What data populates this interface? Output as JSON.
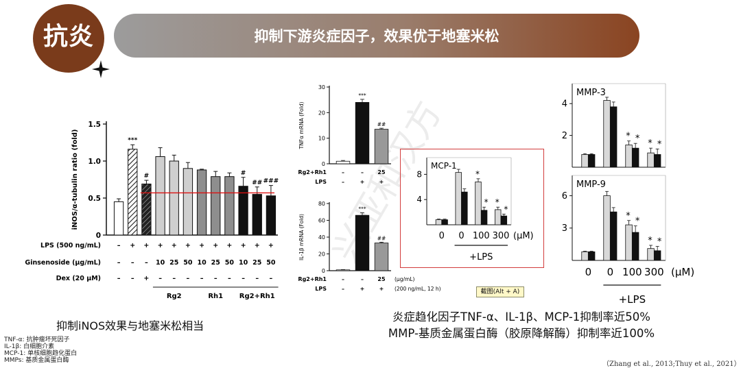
{
  "header": {
    "badge_label": "抗炎",
    "banner_title": "抑制下游炎症因子，效果优于地塞米松"
  },
  "watermark": "兴亚和汉方",
  "inos_panel": {
    "caption": "抑制iNOS效果与地塞米松相当",
    "row_labels": {
      "lps": "LPS (500 ng/mL)",
      "ginsenoside": "Ginsenoside (μg/mL)",
      "dex": "Dex (20 μM)"
    },
    "lps_row": [
      "–",
      "+",
      "+",
      "+",
      "+",
      "+",
      "+",
      "+",
      "+",
      "+",
      "+",
      "+"
    ],
    "ginsenoside_row": [
      "–",
      "–",
      "–",
      "10",
      "25",
      "50",
      "10",
      "25",
      "50",
      "10",
      "25",
      "50"
    ],
    "dex_row": [
      "–",
      "–",
      "+",
      "–",
      "–",
      "–",
      "–",
      "–",
      "–",
      "–",
      "–",
      "–"
    ],
    "groups": [
      "Rg2",
      "Rh1",
      "Rg2+Rh1"
    ]
  },
  "tnf_panel": {
    "row_labels": {
      "rg": "Rg2+Rh1",
      "lps": "LPS"
    },
    "rg_row": [
      "–",
      "–",
      "25"
    ],
    "lps_row": [
      "–",
      "+",
      "+"
    ]
  },
  "il1_panel": {
    "row_labels": {
      "rg": "Rg2+Rh1",
      "lps": "LPS"
    },
    "rg_row": [
      "–",
      "–",
      "25"
    ],
    "lps_row": [
      "–",
      "+",
      "+"
    ],
    "unit1": "(μg/mL)",
    "unit2": "(200 ng/mL, 12 h)"
  },
  "mcp_panel": {
    "x_labels": [
      "0",
      "0",
      "100",
      "300"
    ],
    "unit": "(μM)",
    "lps_label": "+LPS"
  },
  "mmp_panel": {
    "x_labels": [
      "0",
      "0",
      "100",
      "300"
    ],
    "unit": "(μM)",
    "lps_label": "+LPS"
  },
  "captions": {
    "middle_line1": "炎症趋化因子TNF-α、IL-1β、MCP-1抑制率近50%",
    "middle_line2": "MMP-基质金属蛋白酶（胶原降解酶）抑制率近100%",
    "tooltip": "截图(Alt + A)",
    "citation": "（Zhang et al., 2013;Thuy et al., 2021）"
  },
  "footnotes": [
    "TNF-α: 抗肿瘤坏死因子",
    "IL-1β: 白细胞介素",
    "MCP-1: 单核细胞趋化蛋白",
    "MMPs: 基质金属蛋白酶"
  ],
  "chart_data": [
    {
      "type": "bar",
      "id": "inos",
      "ylabel": "iNOS/α-tubulin ratio (fold)",
      "ylim": [
        0,
        1.5
      ],
      "yticks": [
        0,
        0.5,
        1.0,
        1.5
      ],
      "values": [
        0.45,
        1.16,
        0.69,
        1.06,
        1.0,
        0.9,
        0.88,
        0.79,
        0.79,
        0.66,
        0.55,
        0.53
      ],
      "errors": [
        0.04,
        0.06,
        0.05,
        0.12,
        0.08,
        0.08,
        0.01,
        0.07,
        0.05,
        0.12,
        0.1,
        0.14
      ],
      "significance": [
        "",
        "***",
        "#",
        "",
        "",
        "",
        "",
        "",
        "",
        "#",
        "##",
        "###"
      ],
      "reference_line": 0.57,
      "colors": [
        "#ffffff",
        "hatch",
        "hatch-dark",
        "#cfcfcf",
        "#cfcfcf",
        "#cfcfcf",
        "#8e8e8e",
        "#8e8e8e",
        "#8e8e8e",
        "#111111",
        "#111111",
        "#111111"
      ]
    },
    {
      "type": "bar",
      "id": "tnf",
      "ylabel": "TNFα mRNA (Fold)",
      "ylim": [
        0,
        30
      ],
      "yticks": [
        0,
        10,
        20,
        30
      ],
      "values": [
        1,
        24,
        13.5
      ],
      "errors": [
        0.3,
        1.2,
        0.4
      ],
      "significance": [
        "",
        "***",
        "##"
      ],
      "colors": [
        "#ffffff",
        "#111111",
        "#999999"
      ]
    },
    {
      "type": "bar",
      "id": "il1b",
      "ylabel": "IL-1β mRNA (Fold)",
      "ylim": [
        0,
        80
      ],
      "yticks": [
        0,
        20,
        40,
        60,
        80
      ],
      "values": [
        1,
        66,
        33
      ],
      "errors": [
        0.3,
        3,
        1
      ],
      "significance": [
        "",
        "***",
        "##"
      ],
      "colors": [
        "#ffffff",
        "#111111",
        "#999999"
      ]
    },
    {
      "type": "bar",
      "id": "mcp1",
      "title": "MCP-1",
      "ylim": [
        0,
        10
      ],
      "yticks": [
        4,
        8
      ],
      "categories": [
        "0",
        "0",
        "100",
        "300"
      ],
      "series": [
        {
          "values": [
            0.8,
            8.3,
            6.8,
            2.4
          ],
          "errors": [
            0.1,
            0.5,
            0.5,
            0.4
          ]
        },
        {
          "values": [
            0.8,
            5.2,
            2.3,
            1.4
          ],
          "errors": [
            0.1,
            0.5,
            0.5,
            0.3
          ]
        }
      ],
      "significance": [
        [
          "",
          ""
        ],
        [
          "",
          ""
        ],
        [
          "*",
          "*"
        ],
        [
          "*",
          "*"
        ]
      ],
      "colors": [
        "#d8d8d8",
        "#111111"
      ]
    },
    {
      "type": "bar",
      "id": "mmp3",
      "title": "MMP-3",
      "ylim": [
        0,
        5
      ],
      "yticks": [
        2,
        4
      ],
      "categories": [
        "0",
        "0",
        "100",
        "300"
      ],
      "series": [
        {
          "values": [
            0.8,
            4.2,
            1.4,
            0.9
          ],
          "errors": [
            0.05,
            0.2,
            0.25,
            0.3
          ]
        },
        {
          "values": [
            0.8,
            3.8,
            1.2,
            0.8
          ],
          "errors": [
            0.05,
            0.3,
            0.3,
            0.35
          ]
        }
      ],
      "significance": [
        [
          "",
          ""
        ],
        [
          "",
          ""
        ],
        [
          "*",
          "*"
        ],
        [
          "*",
          "*"
        ]
      ],
      "colors": [
        "#d8d8d8",
        "#111111"
      ]
    },
    {
      "type": "bar",
      "id": "mmp9",
      "title": "MMP-9",
      "ylim": [
        0,
        7.5
      ],
      "yticks": [
        3,
        6
      ],
      "categories": [
        "0",
        "0",
        "100",
        "300"
      ],
      "series": [
        {
          "values": [
            0.8,
            6.0,
            3.3,
            1.1
          ],
          "errors": [
            0.05,
            0.4,
            0.4,
            0.3
          ]
        },
        {
          "values": [
            0.8,
            4.5,
            2.6,
            0.9
          ],
          "errors": [
            0.05,
            0.4,
            0.6,
            0.4
          ]
        }
      ],
      "significance": [
        [
          "",
          ""
        ],
        [
          "",
          ""
        ],
        [
          "*",
          "*"
        ],
        [
          "*",
          "*"
        ]
      ],
      "colors": [
        "#d8d8d8",
        "#111111"
      ]
    }
  ]
}
